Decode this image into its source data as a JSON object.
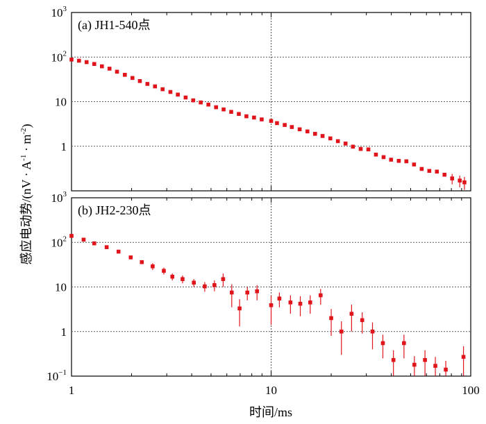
{
  "figure": {
    "xlabel": "时间/ms",
    "ylabel_parts": [
      "感应电动势/(nV · A",
      "-1",
      " · m",
      "-2",
      ")"
    ]
  },
  "x_ticks": [
    "1",
    "10",
    "100"
  ],
  "y_ticks_top": [
    {
      "base": "10",
      "exp": "3"
    },
    {
      "base": "10",
      "exp": "2"
    },
    {
      "base": "10",
      "exp": ""
    },
    {
      "base": "1",
      "exp": ""
    }
  ],
  "y_ticks_bottom": [
    {
      "base": "10",
      "exp": "3"
    },
    {
      "base": "10",
      "exp": "2"
    },
    {
      "base": "10",
      "exp": ""
    },
    {
      "base": "1",
      "exp": ""
    },
    {
      "base": "10",
      "exp": "−1"
    }
  ],
  "chart_data": [
    {
      "type": "scatter",
      "title": "(a) JH1-540点",
      "x_scale": "log",
      "y_scale": "log",
      "xlim": [
        1,
        100
      ],
      "ylim": [
        0.1,
        1000
      ],
      "grid": {
        "x_major": "dotted",
        "y_major": "dotted"
      },
      "color": "#e0151b",
      "series": [
        {
          "x": [
            1.0,
            1.09,
            1.19,
            1.3,
            1.42,
            1.55,
            1.69,
            1.85,
            2.02,
            2.2,
            2.4,
            2.62,
            2.86,
            3.13,
            3.41,
            3.73,
            4.07,
            4.44,
            4.85,
            5.3,
            5.78,
            6.31,
            6.89,
            7.52,
            8.21,
            8.97,
            10.0,
            10.7,
            11.7,
            12.7,
            13.9,
            15.2,
            16.6,
            18.1,
            19.8,
            21.6,
            23.6,
            25.7,
            28.1,
            30.7,
            33.5,
            36.6,
            39.9,
            43.6,
            47.6,
            52.0,
            56.8,
            62.0,
            67.7,
            73.9,
            80.7,
            88.1,
            93.0
          ],
          "y": [
            88,
            83,
            77,
            70,
            62,
            55,
            47,
            40,
            34,
            29,
            25,
            22,
            19,
            16.5,
            14.4,
            12.4,
            10.7,
            9.6,
            8.6,
            7.5,
            6.7,
            5.9,
            5.3,
            4.7,
            4.4,
            4.0,
            3.7,
            3.3,
            3.0,
            2.7,
            2.4,
            2.15,
            1.9,
            1.7,
            1.5,
            1.3,
            1.15,
            0.98,
            0.87,
            0.85,
            0.65,
            0.57,
            0.5,
            0.47,
            0.46,
            0.39,
            0.31,
            0.28,
            0.27,
            0.23,
            0.19,
            0.17,
            0.155
          ],
          "yerr": [
            0,
            0,
            0,
            0,
            0,
            0,
            0,
            0,
            0,
            0,
            0,
            0,
            0,
            0,
            0,
            0,
            0,
            0,
            0,
            0,
            0,
            0,
            0,
            0,
            0,
            0,
            0,
            0,
            0,
            0,
            0,
            0,
            0,
            0,
            0,
            0,
            0,
            0,
            0,
            0,
            0,
            0,
            0,
            0,
            0,
            0,
            0,
            0,
            0,
            0,
            0.05,
            0.05,
            0.05
          ]
        }
      ]
    },
    {
      "type": "scatter",
      "title": "(b) JH2-230点",
      "x_scale": "log",
      "y_scale": "log",
      "xlim": [
        1,
        100
      ],
      "ylim": [
        0.1,
        1000
      ],
      "grid": {
        "x_major": "dotted",
        "y_major": "dotted"
      },
      "color": "#e0151b",
      "series": [
        {
          "x": [
            1.0,
            1.15,
            1.3,
            1.5,
            1.72,
            1.98,
            2.25,
            2.55,
            2.9,
            3.2,
            3.6,
            4.1,
            4.65,
            5.2,
            5.75,
            6.35,
            6.95,
            7.6,
            8.5,
            10.0,
            11.0,
            12.5,
            14.0,
            15.7,
            17.7,
            20.0,
            22.5,
            25.3,
            28.6,
            32.2,
            36.3,
            41.0,
            46.3,
            52.2,
            59.0,
            66.5,
            75.0,
            92.0
          ],
          "y": [
            140,
            115,
            95,
            78,
            62,
            46,
            36,
            29,
            23,
            17,
            15,
            12.5,
            10.3,
            11,
            15,
            7.5,
            3.3,
            7.5,
            8,
            3.9,
            5.5,
            4.5,
            4.2,
            4.5,
            6.5,
            2.0,
            1.0,
            2.5,
            1.8,
            1.0,
            0.55,
            0.23,
            0.55,
            0.18,
            0.23,
            0.17,
            0.14,
            0.27
          ],
          "yerr": [
            10,
            10,
            8,
            6,
            5,
            4,
            3,
            5,
            4,
            3,
            3,
            2.5,
            2.5,
            3,
            5,
            4,
            2,
            2.5,
            3,
            2.5,
            2,
            2,
            2,
            2,
            2.5,
            1.2,
            0.7,
            1.5,
            0.9,
            0.6,
            0.3,
            0.15,
            0.3,
            0.1,
            0.15,
            0.1,
            0.08,
            0.2
          ]
        }
      ]
    }
  ]
}
